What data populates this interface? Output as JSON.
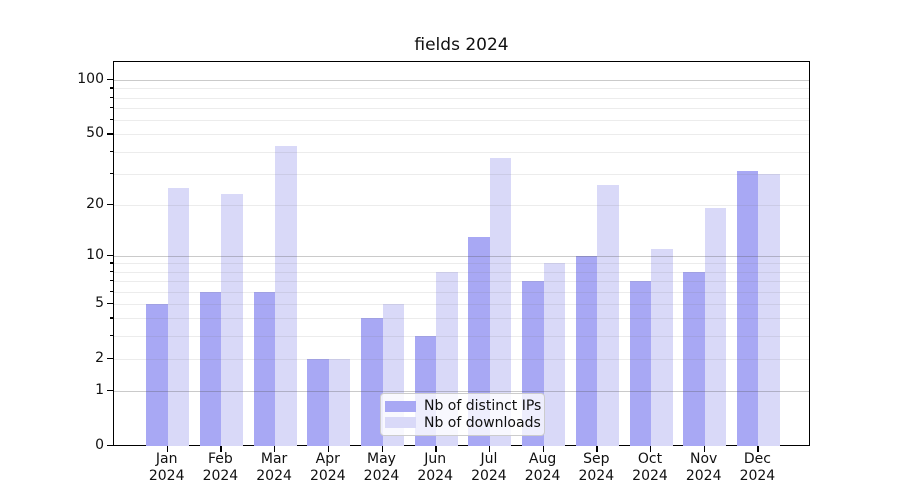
{
  "title": "fields 2024",
  "legend": {
    "items": [
      {
        "label": "Nb of distinct IPs",
        "color": "#a8a8f4"
      },
      {
        "label": "Nb of downloads",
        "color": "#d9d9f8"
      }
    ]
  },
  "chart_data": {
    "type": "bar",
    "title": "fields 2024",
    "categories": [
      "Jan 2024",
      "Feb 2024",
      "Mar 2024",
      "Apr 2024",
      "May 2024",
      "Jun 2024",
      "Jul 2024",
      "Aug 2024",
      "Sep 2024",
      "Oct 2024",
      "Nov 2024",
      "Dec 2024"
    ],
    "category_line1": [
      "Jan",
      "Feb",
      "Mar",
      "Apr",
      "May",
      "Jun",
      "Jul",
      "Aug",
      "Sep",
      "Oct",
      "Nov",
      "Dec"
    ],
    "category_line2": [
      "2024",
      "2024",
      "2024",
      "2024",
      "2024",
      "2024",
      "2024",
      "2024",
      "2024",
      "2024",
      "2024",
      "2024"
    ],
    "series": [
      {
        "name": "Nb of distinct IPs",
        "color": "#a8a8f4",
        "values": [
          5,
          6,
          6,
          2,
          4,
          3,
          13,
          7,
          10,
          7,
          8,
          31
        ]
      },
      {
        "name": "Nb of downloads",
        "color": "#d9d9f8",
        "values": [
          25,
          23,
          43,
          2,
          5,
          8,
          37,
          9,
          26,
          11,
          19,
          30
        ]
      }
    ],
    "xlabel": "",
    "ylabel": "",
    "yscale": "log1p",
    "yticks": [
      0,
      1,
      2,
      5,
      10,
      20,
      50,
      100
    ],
    "minor_yticks": [
      2,
      3,
      4,
      5,
      6,
      7,
      8,
      9,
      20,
      30,
      40,
      50,
      60,
      70,
      80,
      90
    ],
    "major_gridlines": [
      1,
      10,
      100
    ],
    "ylim": [
      0,
      124
    ],
    "grid": true,
    "grid_above_bars": true,
    "legend_position": "lower center"
  }
}
